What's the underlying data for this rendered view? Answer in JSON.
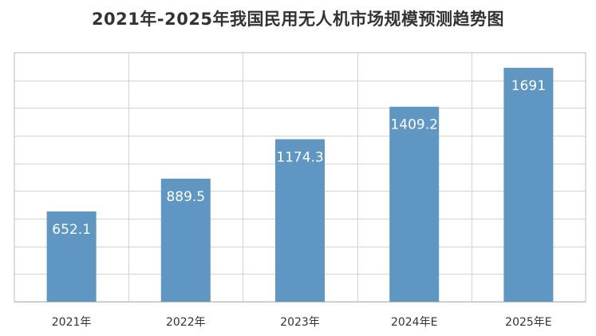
{
  "chart_data": {
    "type": "bar",
    "title": "2021年-2025年我国民用无人机市场规模预测趋势图",
    "categories": [
      "2021年",
      "2022年",
      "2023年",
      "2024年E",
      "2025年E"
    ],
    "values": [
      652.1,
      889.5,
      1174.3,
      1409.2,
      1691
    ],
    "value_labels": [
      "652.1",
      "889.5",
      "1174.3",
      "1409.2",
      "1691"
    ],
    "ylim": [
      0,
      1800
    ],
    "y_gridline_step": 200,
    "grid": true,
    "legend": "none",
    "bar_color": "#5f97c2"
  }
}
